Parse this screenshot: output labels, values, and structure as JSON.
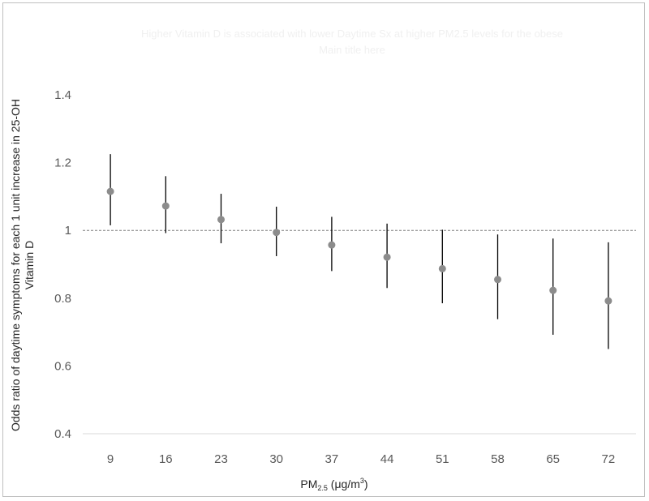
{
  "chart_data": {
    "type": "scatter",
    "title": "Higher Vitamin D is associated with lower Daytime Sx at higher PM2.5 levels for the obese",
    "subtitle": "Main title here",
    "xlabel": {
      "main": "PM",
      "sub": "2.5",
      "rest": " (μg/m",
      "sup": "3",
      "end": ")"
    },
    "ylabel_line1": "Odds ratio of daytime symptoms for each 1 unit increase in 25-OH",
    "ylabel_line2": "Vitamin D",
    "categories": [
      "9",
      "16",
      "23",
      "30",
      "37",
      "44",
      "51",
      "58",
      "65",
      "72"
    ],
    "values": [
      1.115,
      1.072,
      1.032,
      0.994,
      0.957,
      0.921,
      0.887,
      0.855,
      0.823,
      0.792
    ],
    "lower": [
      1.015,
      0.992,
      0.962,
      0.924,
      0.88,
      0.83,
      0.785,
      0.738,
      0.692,
      0.65
    ],
    "upper": [
      1.225,
      1.16,
      1.108,
      1.07,
      1.04,
      1.02,
      1.002,
      0.988,
      0.976,
      0.965
    ],
    "reference_line": 1,
    "ylim": [
      0.4,
      1.4
    ],
    "yticks": [
      "0.4",
      "0.6",
      "0.8",
      "1",
      "1.2",
      "1.4"
    ],
    "grid": false,
    "point_color": "#8c8c8c",
    "bar_color": "#000000"
  }
}
